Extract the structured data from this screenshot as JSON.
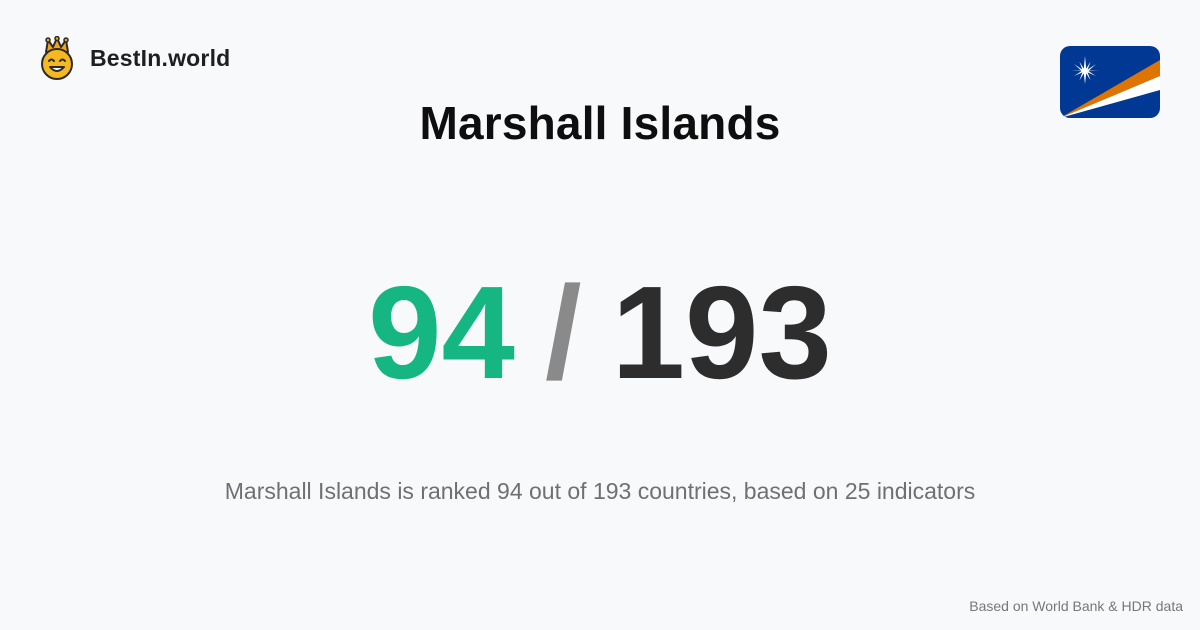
{
  "brand": {
    "name": "BestIn.world",
    "logo_icon": "smiling-face-with-crown-icon"
  },
  "flag": {
    "icon": "marshall-islands-flag-icon",
    "colors": {
      "field": "#003893",
      "orange_stripe": "#DD7500",
      "white_stripe": "#FFFFFF",
      "star": "#FFFFFF"
    }
  },
  "country": {
    "name": "Marshall Islands"
  },
  "ranking": {
    "position": "94",
    "separator": "/",
    "total": "193",
    "position_color": "#16b683"
  },
  "summary": "Marshall Islands is ranked 94 out of 193 countries, based on 25 indicators",
  "source_note": "Based on World Bank & HDR data"
}
